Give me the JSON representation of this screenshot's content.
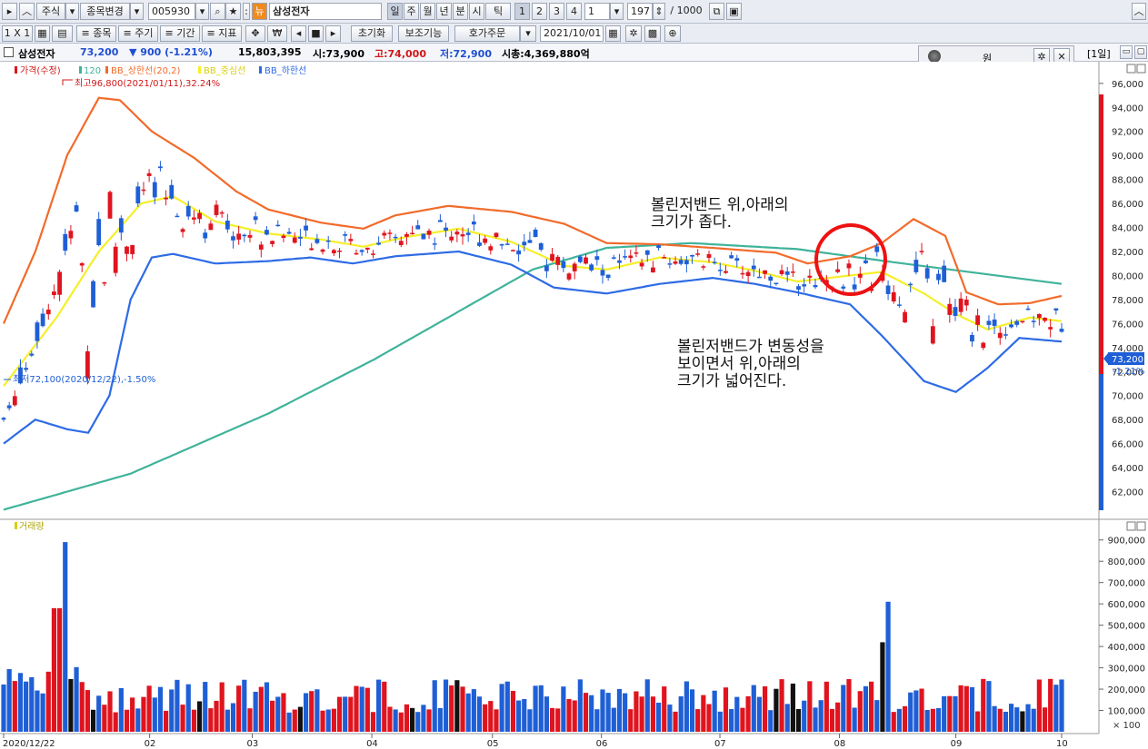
{
  "toolbar": {
    "market": "주식",
    "change_stock": "종목변경",
    "code": "005930",
    "stock_name": "삼성전자",
    "period_tabs": [
      "일",
      "주",
      "월",
      "년",
      "분",
      "시",
      "틱"
    ],
    "num_tabs": [
      "1",
      "2",
      "3",
      "4"
    ],
    "period_value": "1",
    "count": "197",
    "total": "/ 1000"
  },
  "toolbar2": {
    "layout": "1 X 1",
    "stock": "종목",
    "cycle": "주기",
    "range": "기간",
    "indicator": "지표",
    "reset": "초기화",
    "aux": "보조기능",
    "order": "호가주문",
    "date": "2021/10/01"
  },
  "info": {
    "name": "삼성전자",
    "price": "73,200",
    "change": "▼  900  (-1.21%)",
    "volume": "15,803,395",
    "open": "시:73,900",
    "high": "고:74,000",
    "low": "저:72,900",
    "mcap": "시총:4,369,880억",
    "period_badge": "[1일]"
  },
  "won_panel": {
    "label": "원"
  },
  "legend": {
    "price": "가격(수정)",
    "ma120": "120",
    "bb_upper": "BB_상한선(20,2)",
    "bb_mid": "BB_중심선",
    "bb_lower": "BB_하한선",
    "volume": "거래량"
  },
  "markers": {
    "high": "최고96,800(2021/01/11),32.24%",
    "low": "최저72,100(2020/12/22),-1.50%"
  },
  "annotations": {
    "narrow": [
      "볼린저밴드 위,아래의",
      "크기가 좁다."
    ],
    "wide": [
      "볼린저밴드가 변동성을",
      "보이면서 위,아래의",
      "크기가 넓어진다."
    ]
  },
  "price_box": {
    "price": "73,200",
    "pct": "-1.21%"
  },
  "colors": {
    "up": "#e0141e",
    "down": "#1f5fd6",
    "upper": "#f26b2a",
    "mid": "#f5ef2a",
    "lower": "#2e6be6",
    "ma120": "#3fb39a",
    "circle": "#ee1111"
  },
  "chart_data": {
    "type": "candlestick",
    "x_ticks": [
      "2020/12/22",
      "02",
      "03",
      "04",
      "05",
      "06",
      "07",
      "08",
      "09",
      "10"
    ],
    "y_ticks": [
      "62,000",
      "64,000",
      "66,000",
      "68,000",
      "70,000",
      "72,000",
      "74,000",
      "76,000",
      "78,000",
      "80,000",
      "82,000",
      "84,000",
      "86,000",
      "88,000",
      "90,000",
      "92,000",
      "94,000",
      "96,000"
    ],
    "ylim": [
      60000,
      97500
    ],
    "vol_ticks": [
      "100,000",
      "200,000",
      "300,000",
      "400,000",
      "500,000",
      "600,000",
      "700,000",
      "800,000",
      "900,000"
    ],
    "vol_unit": "× 100",
    "vol_ylim": [
      0,
      950000
    ],
    "ma120": [
      [
        0,
        60500
      ],
      [
        0.12,
        63500
      ],
      [
        0.25,
        68500
      ],
      [
        0.35,
        73000
      ],
      [
        0.45,
        78000
      ],
      [
        0.5,
        80500
      ],
      [
        0.57,
        82300
      ],
      [
        0.65,
        82700
      ],
      [
        0.75,
        82200
      ],
      [
        0.85,
        81000
      ],
      [
        1.0,
        79300
      ]
    ],
    "bb_upper": [
      [
        0,
        76000
      ],
      [
        0.03,
        82000
      ],
      [
        0.06,
        90000
      ],
      [
        0.09,
        94800
      ],
      [
        0.11,
        94600
      ],
      [
        0.14,
        92000
      ],
      [
        0.18,
        89800
      ],
      [
        0.22,
        87000
      ],
      [
        0.25,
        85500
      ],
      [
        0.3,
        84400
      ],
      [
        0.34,
        83900
      ],
      [
        0.37,
        85000
      ],
      [
        0.42,
        85800
      ],
      [
        0.48,
        85300
      ],
      [
        0.53,
        84300
      ],
      [
        0.57,
        82700
      ],
      [
        0.62,
        82600
      ],
      [
        0.67,
        82300
      ],
      [
        0.73,
        81900
      ],
      [
        0.76,
        81000
      ],
      [
        0.8,
        81600
      ],
      [
        0.83,
        82700
      ],
      [
        0.86,
        84700
      ],
      [
        0.89,
        83300
      ],
      [
        0.91,
        78600
      ],
      [
        0.94,
        77600
      ],
      [
        0.97,
        77700
      ],
      [
        1.0,
        78300
      ]
    ],
    "bb_mid": [
      [
        0,
        70800
      ],
      [
        0.05,
        76500
      ],
      [
        0.09,
        82000
      ],
      [
        0.13,
        86000
      ],
      [
        0.16,
        86600
      ],
      [
        0.2,
        84500
      ],
      [
        0.25,
        83500
      ],
      [
        0.3,
        83000
      ],
      [
        0.34,
        82400
      ],
      [
        0.38,
        83200
      ],
      [
        0.43,
        83900
      ],
      [
        0.48,
        82800
      ],
      [
        0.53,
        80800
      ],
      [
        0.57,
        80500
      ],
      [
        0.62,
        81500
      ],
      [
        0.67,
        81100
      ],
      [
        0.71,
        80400
      ],
      [
        0.75,
        79500
      ],
      [
        0.79,
        79900
      ],
      [
        0.83,
        80300
      ],
      [
        0.87,
        78500
      ],
      [
        0.9,
        76800
      ],
      [
        0.93,
        75500
      ],
      [
        0.97,
        76500
      ],
      [
        1.0,
        76200
      ]
    ],
    "bb_lower": [
      [
        0,
        66000
      ],
      [
        0.03,
        68000
      ],
      [
        0.06,
        67200
      ],
      [
        0.08,
        66900
      ],
      [
        0.1,
        70000
      ],
      [
        0.12,
        78000
      ],
      [
        0.14,
        81500
      ],
      [
        0.16,
        81800
      ],
      [
        0.2,
        81000
      ],
      [
        0.25,
        81200
      ],
      [
        0.29,
        81500
      ],
      [
        0.33,
        81000
      ],
      [
        0.37,
        81600
      ],
      [
        0.43,
        82000
      ],
      [
        0.48,
        80900
      ],
      [
        0.52,
        79000
      ],
      [
        0.57,
        78500
      ],
      [
        0.62,
        79300
      ],
      [
        0.67,
        79800
      ],
      [
        0.71,
        79300
      ],
      [
        0.75,
        78600
      ],
      [
        0.8,
        77600
      ],
      [
        0.83,
        75000
      ],
      [
        0.87,
        71200
      ],
      [
        0.9,
        70300
      ],
      [
        0.93,
        72300
      ],
      [
        0.96,
        74800
      ],
      [
        1.0,
        74500
      ]
    ]
  }
}
